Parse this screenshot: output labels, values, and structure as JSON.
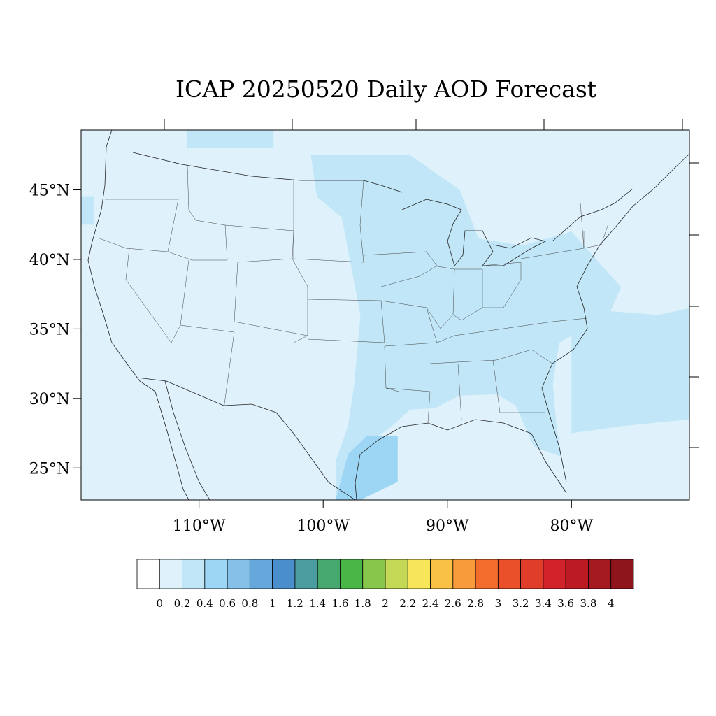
{
  "title": "ICAP 20250520 Daily AOD Forecast",
  "map": {
    "projection": "lat-lon",
    "extent": {
      "lon_min": -119.5,
      "lon_max": -70.5,
      "lat_min": 22.7,
      "lat_max": 49.3
    },
    "background_class": 0.1,
    "lat_ticks": [
      {
        "value": 45,
        "label": "45°N"
      },
      {
        "value": 40,
        "label": "40°N"
      },
      {
        "value": 35,
        "label": "35°N"
      },
      {
        "value": 30,
        "label": "30°N"
      },
      {
        "value": 25,
        "label": "25°N"
      }
    ],
    "lon_ticks": [
      {
        "value": -110,
        "label": "110°W"
      },
      {
        "value": -100,
        "label": "100°W"
      },
      {
        "value": -90,
        "label": "90°W"
      },
      {
        "value": -80,
        "label": "80°W"
      }
    ],
    "aod_regions": [
      {
        "aod": 0.3,
        "polygon": [
          [
            -111,
            49.3
          ],
          [
            -104,
            49.3
          ],
          [
            -104,
            48
          ],
          [
            -111,
            48
          ]
        ]
      },
      {
        "aod": 0.3,
        "polygon": [
          [
            -101,
            47.5
          ],
          [
            -93,
            47.5
          ],
          [
            -89,
            45
          ],
          [
            -87.5,
            41.5
          ],
          [
            -84,
            41
          ],
          [
            -80,
            42
          ],
          [
            -78,
            40
          ],
          [
            -76,
            38
          ],
          [
            -77,
            36
          ],
          [
            -81,
            34
          ],
          [
            -81.5,
            31
          ],
          [
            -81.2,
            28
          ],
          [
            -80.8,
            25.8
          ],
          [
            -83,
            26.5
          ],
          [
            -84.5,
            29.5
          ],
          [
            -86,
            30.3
          ],
          [
            -89,
            30.2
          ],
          [
            -91,
            29.3
          ],
          [
            -93,
            29.2
          ],
          [
            -94.5,
            28
          ],
          [
            -96,
            27
          ],
          [
            -97.3,
            24.5
          ],
          [
            -97.5,
            22.7
          ],
          [
            -99,
            22.7
          ],
          [
            -99,
            25.5
          ],
          [
            -98,
            28
          ],
          [
            -97.5,
            31
          ],
          [
            -97,
            36
          ],
          [
            -98.5,
            43
          ],
          [
            -100.5,
            44.5
          ]
        ]
      },
      {
        "aod": 0.3,
        "polygon": [
          [
            -80,
            36.5
          ],
          [
            -73,
            36
          ],
          [
            -70.5,
            36.5
          ],
          [
            -70.5,
            28.5
          ],
          [
            -76,
            28
          ],
          [
            -80,
            27.5
          ]
        ]
      },
      {
        "aod": 0.3,
        "polygon": [
          [
            -119.5,
            44.5
          ],
          [
            -118.5,
            44.5
          ],
          [
            -118.5,
            42.5
          ],
          [
            -119.5,
            42.5
          ]
        ]
      },
      {
        "aod": 0.5,
        "polygon": [
          [
            -96.5,
            27.3
          ],
          [
            -94,
            27.3
          ],
          [
            -94,
            24
          ],
          [
            -97,
            22.7
          ],
          [
            -99,
            22.7
          ],
          [
            -98,
            26
          ]
        ]
      }
    ]
  },
  "colorbar": {
    "labels": [
      "0",
      "0.2",
      "0.4",
      "0.6",
      "0.8",
      "1",
      "1.2",
      "1.4",
      "1.6",
      "1.8",
      "2",
      "2.2",
      "2.4",
      "2.6",
      "2.8",
      "3",
      "3.2",
      "3.4",
      "3.6",
      "3.8",
      "4"
    ],
    "colors": [
      "#ffffff",
      "#dff2fb",
      "#c0e6f8",
      "#9dd6f4",
      "#84c0e7",
      "#66a8dc",
      "#4a8ecb",
      "#4b9c9f",
      "#46a76f",
      "#4bb648",
      "#88c54b",
      "#c4d855",
      "#f7e65a",
      "#f8c044",
      "#f79b3b",
      "#f26d2c",
      "#ea512b",
      "#e03e2a",
      "#d2232a",
      "#bc1b23",
      "#a51a21",
      "#8e151c"
    ]
  }
}
